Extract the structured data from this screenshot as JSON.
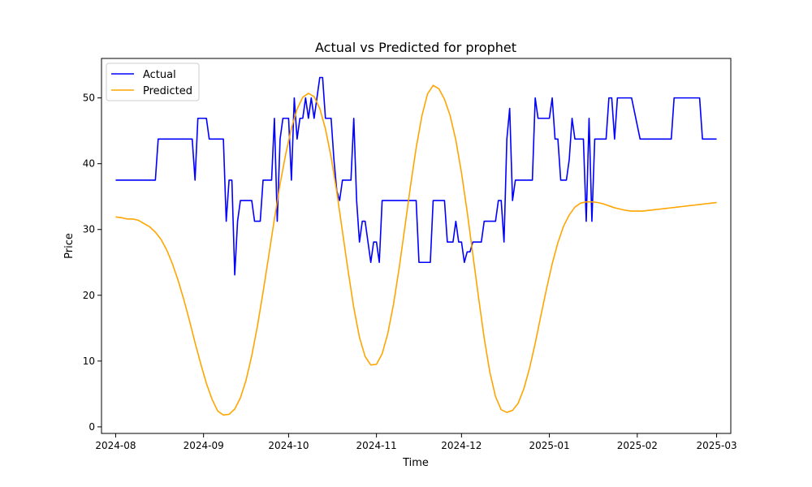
{
  "chart_data": {
    "type": "line",
    "title": "Actual vs Predicted for prophet",
    "xlabel": "Time",
    "ylabel": "Price",
    "xlim": [
      "2024-07-27",
      "2025-03-06"
    ],
    "ylim": [
      -1,
      56
    ],
    "x_ticks": [
      "2024-08",
      "2024-09",
      "2024-10",
      "2024-11",
      "2024-12",
      "2025-01",
      "2025-02",
      "2025-03"
    ],
    "y_ticks": [
      0,
      10,
      20,
      30,
      40,
      50
    ],
    "legend": {
      "position": "top-left"
    },
    "grid": false,
    "series": [
      {
        "name": "Actual",
        "color": "#0000ff",
        "points": [
          [
            "2024-08-01",
            37.5
          ],
          [
            "2024-08-15",
            37.5
          ],
          [
            "2024-08-16",
            43.75
          ],
          [
            "2024-08-28",
            43.75
          ],
          [
            "2024-08-29",
            37.5
          ],
          [
            "2024-08-30",
            46.9
          ],
          [
            "2024-09-02",
            46.9
          ],
          [
            "2024-09-03",
            43.75
          ],
          [
            "2024-09-08",
            43.75
          ],
          [
            "2024-09-09",
            31.25
          ],
          [
            "2024-09-10",
            37.5
          ],
          [
            "2024-09-11",
            37.5
          ],
          [
            "2024-09-12",
            23.1
          ],
          [
            "2024-09-13",
            31.25
          ],
          [
            "2024-09-14",
            34.4
          ],
          [
            "2024-09-18",
            34.4
          ],
          [
            "2024-09-19",
            31.25
          ],
          [
            "2024-09-21",
            31.25
          ],
          [
            "2024-09-22",
            37.5
          ],
          [
            "2024-09-25",
            37.5
          ],
          [
            "2024-09-26",
            46.9
          ],
          [
            "2024-09-27",
            31.25
          ],
          [
            "2024-09-28",
            43.75
          ],
          [
            "2024-09-29",
            46.9
          ],
          [
            "2024-10-01",
            46.9
          ],
          [
            "2024-10-02",
            37.5
          ],
          [
            "2024-10-03",
            50.0
          ],
          [
            "2024-10-04",
            43.75
          ],
          [
            "2024-10-05",
            46.9
          ],
          [
            "2024-10-06",
            46.9
          ],
          [
            "2024-10-07",
            50.0
          ],
          [
            "2024-10-08",
            46.9
          ],
          [
            "2024-10-09",
            50.0
          ],
          [
            "2024-10-10",
            46.9
          ],
          [
            "2024-10-11",
            50.0
          ],
          [
            "2024-10-12",
            53.1
          ],
          [
            "2024-10-13",
            53.1
          ],
          [
            "2024-10-14",
            46.9
          ],
          [
            "2024-10-16",
            46.9
          ],
          [
            "2024-10-17",
            40.6
          ],
          [
            "2024-10-18",
            35.9
          ],
          [
            "2024-10-19",
            34.4
          ],
          [
            "2024-10-20",
            37.5
          ],
          [
            "2024-10-23",
            37.5
          ],
          [
            "2024-10-24",
            46.9
          ],
          [
            "2024-10-25",
            34.4
          ],
          [
            "2024-10-26",
            28.1
          ],
          [
            "2024-10-27",
            31.25
          ],
          [
            "2024-10-28",
            31.25
          ],
          [
            "2024-10-30",
            25.0
          ],
          [
            "2024-10-31",
            28.1
          ],
          [
            "2024-11-01",
            28.1
          ],
          [
            "2024-11-02",
            25.0
          ],
          [
            "2024-11-03",
            34.4
          ],
          [
            "2024-11-15",
            34.4
          ],
          [
            "2024-11-16",
            25.0
          ],
          [
            "2024-11-20",
            25.0
          ],
          [
            "2024-11-21",
            34.4
          ],
          [
            "2024-11-25",
            34.4
          ],
          [
            "2024-11-26",
            28.1
          ],
          [
            "2024-11-28",
            28.1
          ],
          [
            "2024-11-29",
            31.25
          ],
          [
            "2024-11-30",
            28.1
          ],
          [
            "2024-12-01",
            28.1
          ],
          [
            "2024-12-02",
            25.0
          ],
          [
            "2024-12-03",
            26.6
          ],
          [
            "2024-12-04",
            26.6
          ],
          [
            "2024-12-05",
            28.1
          ],
          [
            "2024-12-08",
            28.1
          ],
          [
            "2024-12-09",
            31.25
          ],
          [
            "2024-12-13",
            31.25
          ],
          [
            "2024-12-14",
            34.4
          ],
          [
            "2024-12-15",
            34.4
          ],
          [
            "2024-12-16",
            28.1
          ],
          [
            "2024-12-17",
            43.75
          ],
          [
            "2024-12-18",
            48.4
          ],
          [
            "2024-12-19",
            34.4
          ],
          [
            "2024-12-20",
            37.5
          ],
          [
            "2024-12-26",
            37.5
          ],
          [
            "2024-12-27",
            50.0
          ],
          [
            "2024-12-28",
            46.9
          ],
          [
            "2025-01-01",
            46.9
          ],
          [
            "2025-01-02",
            50.0
          ],
          [
            "2025-01-03",
            43.75
          ],
          [
            "2025-01-04",
            43.75
          ],
          [
            "2025-01-05",
            37.5
          ],
          [
            "2025-01-07",
            37.5
          ],
          [
            "2025-01-08",
            40.6
          ],
          [
            "2025-01-09",
            46.9
          ],
          [
            "2025-01-10",
            43.75
          ],
          [
            "2025-01-13",
            43.75
          ],
          [
            "2025-01-14",
            31.25
          ],
          [
            "2025-01-15",
            46.9
          ],
          [
            "2025-01-16",
            31.25
          ],
          [
            "2025-01-17",
            43.75
          ],
          [
            "2025-01-21",
            43.75
          ],
          [
            "2025-01-22",
            50.0
          ],
          [
            "2025-01-23",
            50.0
          ],
          [
            "2025-01-24",
            43.75
          ],
          [
            "2025-01-25",
            50.0
          ],
          [
            "2025-01-30",
            50.0
          ],
          [
            "2025-02-02",
            43.75
          ],
          [
            "2025-02-13",
            43.75
          ],
          [
            "2025-02-14",
            50.0
          ],
          [
            "2025-02-23",
            50.0
          ],
          [
            "2025-02-24",
            43.75
          ],
          [
            "2025-03-01",
            43.75
          ]
        ]
      },
      {
        "name": "Predicted",
        "color": "#ffa500",
        "points": [
          [
            "2024-08-01",
            31.9
          ],
          [
            "2024-08-03",
            31.8
          ],
          [
            "2024-08-05",
            31.6
          ],
          [
            "2024-08-07",
            31.6
          ],
          [
            "2024-08-09",
            31.4
          ],
          [
            "2024-08-11",
            30.9
          ],
          [
            "2024-08-13",
            30.4
          ],
          [
            "2024-08-15",
            29.6
          ],
          [
            "2024-08-17",
            28.5
          ],
          [
            "2024-08-19",
            26.9
          ],
          [
            "2024-08-21",
            24.8
          ],
          [
            "2024-08-23",
            22.3
          ],
          [
            "2024-08-25",
            19.4
          ],
          [
            "2024-08-27",
            16.2
          ],
          [
            "2024-08-29",
            12.8
          ],
          [
            "2024-08-31",
            9.6
          ],
          [
            "2024-09-02",
            6.6
          ],
          [
            "2024-09-04",
            4.2
          ],
          [
            "2024-09-06",
            2.4
          ],
          [
            "2024-09-08",
            1.8
          ],
          [
            "2024-09-10",
            1.9
          ],
          [
            "2024-09-12",
            2.7
          ],
          [
            "2024-09-14",
            4.4
          ],
          [
            "2024-09-16",
            7.1
          ],
          [
            "2024-09-18",
            10.8
          ],
          [
            "2024-09-20",
            15.3
          ],
          [
            "2024-09-22",
            20.5
          ],
          [
            "2024-09-24",
            26.0
          ],
          [
            "2024-09-26",
            31.6
          ],
          [
            "2024-09-28",
            36.9
          ],
          [
            "2024-09-30",
            41.5
          ],
          [
            "2024-10-02",
            45.4
          ],
          [
            "2024-10-04",
            48.3
          ],
          [
            "2024-10-06",
            50.1
          ],
          [
            "2024-10-08",
            50.7
          ],
          [
            "2024-10-10",
            50.2
          ],
          [
            "2024-10-12",
            48.4
          ],
          [
            "2024-10-14",
            45.3
          ],
          [
            "2024-10-16",
            41.0
          ],
          [
            "2024-10-18",
            35.7
          ],
          [
            "2024-10-20",
            29.7
          ],
          [
            "2024-10-22",
            23.7
          ],
          [
            "2024-10-24",
            18.1
          ],
          [
            "2024-10-26",
            13.6
          ],
          [
            "2024-10-28",
            10.7
          ],
          [
            "2024-10-30",
            9.4
          ],
          [
            "2024-11-01",
            9.5
          ],
          [
            "2024-11-03",
            11.1
          ],
          [
            "2024-11-05",
            14.2
          ],
          [
            "2024-11-07",
            18.6
          ],
          [
            "2024-11-09",
            24.1
          ],
          [
            "2024-11-11",
            30.3
          ],
          [
            "2024-11-13",
            36.6
          ],
          [
            "2024-11-15",
            42.4
          ],
          [
            "2024-11-17",
            47.2
          ],
          [
            "2024-11-19",
            50.6
          ],
          [
            "2024-11-21",
            51.9
          ],
          [
            "2024-11-23",
            51.4
          ],
          [
            "2024-11-25",
            49.8
          ],
          [
            "2024-11-27",
            47.3
          ],
          [
            "2024-11-29",
            43.6
          ],
          [
            "2024-12-01",
            38.6
          ],
          [
            "2024-12-03",
            32.7
          ],
          [
            "2024-12-05",
            26.2
          ],
          [
            "2024-12-07",
            19.7
          ],
          [
            "2024-12-09",
            13.5
          ],
          [
            "2024-12-11",
            8.3
          ],
          [
            "2024-12-13",
            4.6
          ],
          [
            "2024-12-15",
            2.6
          ],
          [
            "2024-12-17",
            2.2
          ],
          [
            "2024-12-19",
            2.5
          ],
          [
            "2024-12-21",
            3.6
          ],
          [
            "2024-12-23",
            5.8
          ],
          [
            "2024-12-25",
            8.9
          ],
          [
            "2024-12-27",
            12.7
          ],
          [
            "2024-12-29",
            16.9
          ],
          [
            "2024-12-31",
            21.0
          ],
          [
            "2025-01-02",
            24.8
          ],
          [
            "2025-01-04",
            28.0
          ],
          [
            "2025-01-06",
            30.5
          ],
          [
            "2025-01-08",
            32.2
          ],
          [
            "2025-01-10",
            33.4
          ],
          [
            "2025-01-12",
            34.0
          ],
          [
            "2025-01-14",
            34.2
          ],
          [
            "2025-01-16",
            34.2
          ],
          [
            "2025-01-18",
            34.1
          ],
          [
            "2025-01-20",
            33.9
          ],
          [
            "2025-01-22",
            33.6
          ],
          [
            "2025-01-24",
            33.3
          ],
          [
            "2025-01-26",
            33.1
          ],
          [
            "2025-01-28",
            32.9
          ],
          [
            "2025-01-30",
            32.8
          ],
          [
            "2025-02-01",
            32.8
          ],
          [
            "2025-02-03",
            32.8
          ],
          [
            "2025-02-05",
            32.9
          ],
          [
            "2025-02-07",
            33.0
          ],
          [
            "2025-02-09",
            33.1
          ],
          [
            "2025-02-11",
            33.2
          ],
          [
            "2025-02-13",
            33.3
          ],
          [
            "2025-02-15",
            33.4
          ],
          [
            "2025-02-17",
            33.5
          ],
          [
            "2025-02-19",
            33.6
          ],
          [
            "2025-02-21",
            33.7
          ],
          [
            "2025-02-23",
            33.8
          ],
          [
            "2025-02-25",
            33.9
          ],
          [
            "2025-02-27",
            34.0
          ],
          [
            "2025-03-01",
            34.1
          ]
        ]
      }
    ]
  }
}
